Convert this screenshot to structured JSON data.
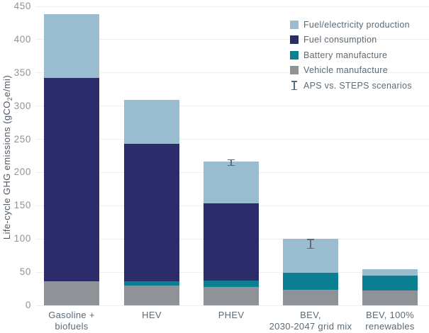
{
  "chart": {
    "y_axis": {
      "title_pre": "Life-cycle GHG emissions (gCO",
      "title_sub": "2",
      "title_post": "e/mi)"
    }
  },
  "colors": {
    "fuel_electricity_production": "#9abccf",
    "fuel_consumption": "#2d2c6a",
    "battery_manufacture": "#0b8093",
    "vehicle_manufacture": "#8f9296",
    "error_bar": "#5c6b78",
    "gridline": "#edeff1",
    "tick_text": "#8b949c",
    "label_text": "#5d6a74"
  },
  "legend": {
    "items": [
      {
        "label": "Fuel/electricity production",
        "key": "fuel_electricity_production",
        "type": "swatch"
      },
      {
        "label": "Fuel consumption",
        "key": "fuel_consumption",
        "type": "swatch"
      },
      {
        "label": "Battery manufacture",
        "key": "battery_manufacture",
        "type": "swatch"
      },
      {
        "label": "Vehicle manufacture",
        "key": "vehicle_manufacture",
        "type": "swatch"
      },
      {
        "label": "APS vs. STEPS scenarios",
        "key": "error_bar",
        "type": "error_bar"
      }
    ]
  },
  "chart_data": {
    "type": "bar",
    "stacked": true,
    "title": "",
    "xlabel": "",
    "ylabel": "Life-cycle GHG emissions (gCO2e/mi)",
    "ylim": [
      0,
      450
    ],
    "yticks": [
      0,
      50,
      100,
      150,
      200,
      250,
      300,
      350,
      400,
      450
    ],
    "grid": true,
    "legend_position": "top-right",
    "categories": [
      "Gasoline + biofuels",
      "HEV",
      "PHEV",
      "BEV, 2030-2047 grid mix",
      "BEV, 100% renewables"
    ],
    "category_label_lines": [
      [
        "Gasoline +",
        "biofuels"
      ],
      [
        "HEV"
      ],
      [
        "PHEV"
      ],
      [
        "BEV,",
        "2030-2047 grid mix"
      ],
      [
        "BEV, 100%",
        "renewables"
      ]
    ],
    "series": [
      {
        "name": "Vehicle manufacture",
        "key": "vehicle_manufacture",
        "values": [
          36,
          30,
          28,
          24,
          22
        ]
      },
      {
        "name": "Battery manufacture",
        "key": "battery_manufacture",
        "values": [
          0,
          6,
          9,
          25,
          23
        ]
      },
      {
        "name": "Fuel consumption",
        "key": "fuel_consumption",
        "values": [
          306,
          207,
          117,
          0,
          0
        ]
      },
      {
        "name": "Fuel/electricity production",
        "key": "fuel_electricity_production",
        "values": [
          96,
          66,
          62,
          51,
          9
        ]
      }
    ],
    "totals": [
      438,
      309,
      216,
      100,
      54
    ],
    "error_bars": [
      {
        "category": "PHEV",
        "category_index": 2,
        "low": 210,
        "high": 220
      },
      {
        "category": "BEV, 2030-2047 grid mix",
        "category_index": 3,
        "low": 85,
        "high": 100
      }
    ]
  }
}
